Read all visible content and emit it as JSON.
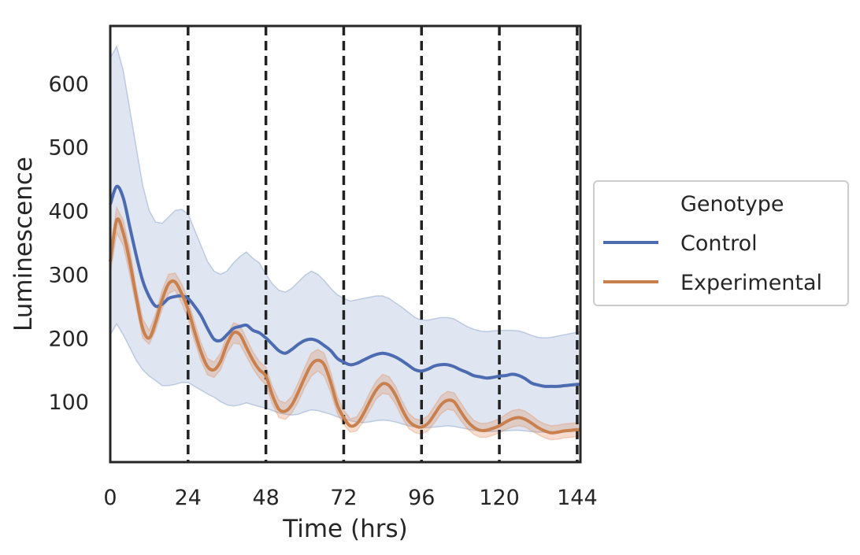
{
  "chart_data": {
    "type": "line",
    "title": "",
    "xlabel": "Time (hrs)",
    "ylabel": "Luminescence",
    "xlim": [
      0,
      145
    ],
    "ylim": [
      5,
      690
    ],
    "x_ticks": [
      0,
      24,
      48,
      72,
      96,
      120,
      144
    ],
    "y_ticks": [
      100,
      200,
      300,
      400,
      500,
      600
    ],
    "vlines": [
      24,
      48,
      72,
      96,
      120,
      144
    ],
    "grid": false,
    "legend": {
      "title": "Genotype",
      "placement": "outside-right",
      "entries": [
        "Control",
        "Experimental"
      ]
    },
    "series": [
      {
        "name": "Control",
        "color": "#4c6bb0",
        "band_color": "#4c72b0",
        "x": [
          0,
          2,
          4,
          6,
          8,
          10,
          12,
          14,
          16,
          18,
          20,
          22,
          24,
          26,
          28,
          30,
          32,
          34,
          36,
          38,
          40,
          42,
          44,
          46,
          48,
          50,
          52,
          54,
          56,
          58,
          60,
          62,
          64,
          66,
          68,
          70,
          72,
          74,
          76,
          78,
          80,
          82,
          84,
          86,
          88,
          90,
          92,
          94,
          96,
          98,
          100,
          102,
          104,
          106,
          108,
          110,
          112,
          114,
          116,
          118,
          120,
          122,
          124,
          126,
          128,
          130,
          132,
          134,
          136,
          138,
          140,
          142,
          144,
          145
        ],
        "y": [
          410,
          438,
          420,
          375,
          330,
          290,
          265,
          250,
          253,
          262,
          265,
          266,
          262,
          250,
          235,
          215,
          198,
          196,
          205,
          215,
          218,
          220,
          212,
          208,
          200,
          190,
          180,
          176,
          182,
          190,
          196,
          198,
          195,
          188,
          180,
          168,
          162,
          158,
          160,
          165,
          170,
          174,
          176,
          174,
          170,
          164,
          157,
          150,
          148,
          151,
          156,
          158,
          158,
          155,
          150,
          146,
          141,
          139,
          137,
          138,
          140,
          141,
          143,
          141,
          136,
          129,
          126,
          124,
          124,
          124,
          125,
          126,
          127,
          127
        ],
        "lower": [
          205,
          222,
          205,
          185,
          165,
          150,
          140,
          133,
          125,
          125,
          127,
          130,
          130,
          124,
          118,
          112,
          107,
          100,
          95,
          93,
          95,
          98,
          95,
          92,
          90,
          86,
          82,
          80,
          79,
          80,
          84,
          87,
          86,
          83,
          80,
          76,
          73,
          70,
          68,
          67,
          68,
          70,
          71,
          70,
          68,
          65,
          62,
          60,
          59,
          59,
          60,
          61,
          62,
          61,
          59,
          57,
          55,
          54,
          53,
          53,
          54,
          54,
          55,
          55,
          54,
          53,
          52,
          52,
          52,
          53,
          53,
          53,
          54,
          54
        ],
        "upper": [
          640,
          658,
          620,
          560,
          500,
          440,
          400,
          382,
          380,
          390,
          400,
          402,
          395,
          370,
          345,
          320,
          305,
          300,
          305,
          318,
          328,
          335,
          325,
          318,
          300,
          285,
          275,
          272,
          278,
          288,
          298,
          305,
          300,
          290,
          278,
          268,
          262,
          258,
          260,
          262,
          264,
          266,
          266,
          262,
          255,
          248,
          240,
          232,
          228,
          228,
          230,
          232,
          232,
          230,
          224,
          218,
          214,
          211,
          210,
          211,
          212,
          212,
          212,
          211,
          208,
          204,
          201,
          200,
          201,
          203,
          205,
          207,
          209,
          210
        ]
      },
      {
        "name": "Experimental",
        "color": "#c8804f",
        "band_color": "#dd8452",
        "x": [
          0,
          2,
          4,
          6,
          8,
          10,
          12,
          14,
          16,
          18,
          20,
          22,
          24,
          26,
          28,
          30,
          32,
          34,
          36,
          38,
          40,
          42,
          44,
          46,
          48,
          50,
          52,
          54,
          56,
          58,
          60,
          62,
          64,
          66,
          68,
          70,
          72,
          74,
          76,
          78,
          80,
          82,
          84,
          86,
          88,
          90,
          92,
          94,
          96,
          98,
          100,
          102,
          104,
          106,
          108,
          110,
          112,
          114,
          116,
          118,
          120,
          122,
          124,
          126,
          128,
          130,
          132,
          134,
          136,
          138,
          140,
          142,
          144,
          145
        ],
        "y": [
          320,
          385,
          365,
          320,
          265,
          215,
          200,
          225,
          260,
          285,
          288,
          270,
          245,
          210,
          178,
          155,
          150,
          163,
          190,
          208,
          205,
          185,
          165,
          150,
          140,
          110,
          88,
          85,
          95,
          115,
          138,
          158,
          165,
          158,
          130,
          95,
          75,
          62,
          65,
          80,
          100,
          118,
          128,
          125,
          110,
          88,
          70,
          62,
          60,
          66,
          80,
          95,
          102,
          100,
          85,
          70,
          60,
          55,
          55,
          58,
          62,
          68,
          73,
          75,
          72,
          66,
          59,
          54,
          51,
          52,
          54,
          55,
          56,
          56
        ],
        "lower": [
          300,
          365,
          345,
          300,
          250,
          200,
          190,
          212,
          245,
          270,
          275,
          255,
          230,
          195,
          164,
          142,
          138,
          150,
          176,
          192,
          190,
          171,
          152,
          137,
          126,
          96,
          75,
          72,
          82,
          100,
          122,
          140,
          148,
          140,
          114,
          82,
          64,
          52,
          54,
          68,
          86,
          104,
          113,
          111,
          96,
          75,
          58,
          51,
          49,
          54,
          67,
          81,
          88,
          86,
          71,
          58,
          49,
          44,
          44,
          47,
          51,
          56,
          60,
          62,
          60,
          54,
          48,
          43,
          40,
          41,
          43,
          44,
          45,
          45
        ],
        "upper": [
          340,
          405,
          385,
          340,
          280,
          230,
          212,
          238,
          275,
          300,
          302,
          285,
          260,
          225,
          192,
          168,
          162,
          176,
          204,
          224,
          220,
          199,
          178,
          163,
          154,
          124,
          102,
          98,
          108,
          130,
          154,
          176,
          182,
          176,
          146,
          108,
          87,
          73,
          76,
          92,
          114,
          132,
          143,
          139,
          124,
          101,
          82,
          73,
          71,
          78,
          93,
          109,
          116,
          114,
          99,
          83,
          71,
          66,
          66,
          69,
          73,
          80,
          86,
          88,
          85,
          78,
          70,
          65,
          62,
          63,
          65,
          66,
          67,
          67
        ]
      }
    ]
  }
}
